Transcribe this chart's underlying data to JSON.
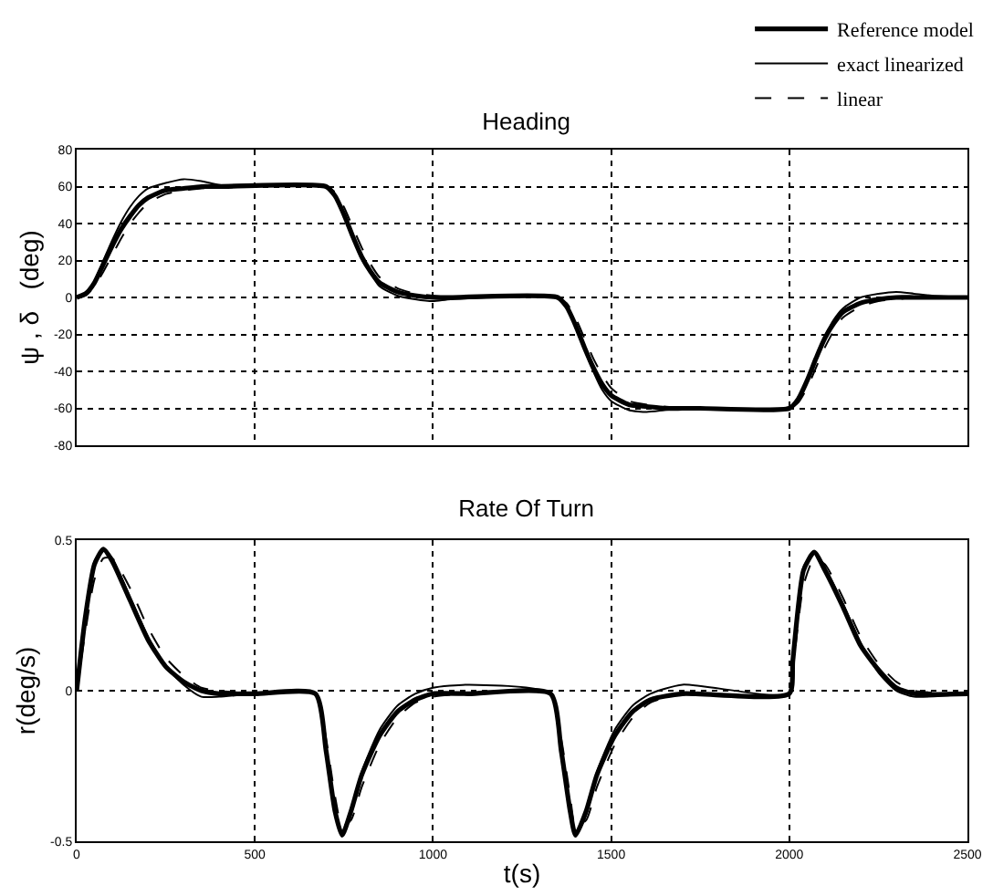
{
  "chart_data": [
    {
      "type": "line",
      "title": "Heading",
      "ylabel": "ψ , δ   (deg)",
      "x": [
        0,
        25,
        50,
        75,
        100,
        125,
        150,
        175,
        200,
        250,
        300,
        350,
        400,
        700,
        725,
        750,
        775,
        800,
        825,
        850,
        900,
        950,
        1000,
        1050,
        1350,
        1375,
        1400,
        1425,
        1450,
        1475,
        1500,
        1550,
        1600,
        1650,
        1700,
        1750,
        2000,
        2025,
        2050,
        2075,
        2100,
        2125,
        2150,
        2200,
        2250,
        2300,
        2350,
        2400,
        2500
      ],
      "xlim": [
        0,
        2500
      ],
      "xticks": [
        0,
        500,
        1000,
        1500,
        2000,
        2500
      ],
      "ylim": [
        -80,
        80
      ],
      "yticks": [
        -80,
        -60,
        -40,
        -20,
        0,
        20,
        40,
        60,
        80
      ],
      "grid": true,
      "legend": "top right",
      "tick_labels": "y",
      "series": [
        {
          "name": "Reference model",
          "color": "#000000",
          "line_style": "solid",
          "values": [
            0,
            2,
            8,
            18,
            28,
            37,
            44,
            50,
            54,
            58,
            59,
            60,
            60,
            60,
            55,
            45,
            33,
            22,
            14,
            8,
            3,
            1,
            0,
            0,
            0,
            -5,
            -15,
            -27,
            -38,
            -47,
            -53,
            -58,
            -59,
            -60,
            -60,
            -60,
            -60,
            -55,
            -45,
            -33,
            -22,
            -14,
            -8,
            -3,
            -1,
            0,
            0,
            0,
            0
          ]
        },
        {
          "name": "exact linearized",
          "color": "#000000",
          "line_style": "solid",
          "values": [
            0,
            2,
            9,
            20,
            31,
            41,
            49,
            55,
            59,
            62,
            64,
            63,
            61,
            60,
            55,
            45,
            32,
            21,
            13,
            6,
            1,
            -1,
            -2,
            -1,
            0,
            -5,
            -15,
            -28,
            -40,
            -50,
            -56,
            -61,
            -62,
            -61,
            -60,
            -60,
            -60,
            -55,
            -45,
            -32,
            -21,
            -12,
            -6,
            0,
            2,
            3,
            2,
            1,
            0
          ]
        },
        {
          "name": "linear",
          "color": "#000000",
          "line_style": "dashed",
          "values": [
            0,
            1,
            6,
            14,
            23,
            32,
            40,
            46,
            51,
            56,
            58,
            59,
            60,
            60,
            57,
            49,
            38,
            27,
            18,
            11,
            5,
            2,
            1,
            0,
            0,
            -3,
            -11,
            -22,
            -33,
            -42,
            -49,
            -56,
            -58,
            -59,
            -60,
            -60,
            -60,
            -57,
            -49,
            -38,
            -27,
            -18,
            -11,
            -5,
            -2,
            -1,
            0,
            0,
            0
          ]
        }
      ]
    },
    {
      "type": "line",
      "title": "Rate Of Turn",
      "xlabel": "t(s)",
      "ylabel": "r(deg/s)",
      "x": [
        0,
        25,
        50,
        75,
        100,
        150,
        200,
        250,
        300,
        350,
        400,
        500,
        670,
        700,
        725,
        745,
        770,
        800,
        850,
        900,
        950,
        1000,
        1100,
        1330,
        1360,
        1385,
        1400,
        1430,
        1460,
        1510,
        1560,
        1610,
        1700,
        2000,
        2010,
        2040,
        2070,
        2100,
        2150,
        2200,
        2250,
        2300,
        2350,
        2500
      ],
      "xlim": [
        0,
        2500
      ],
      "xticks": [
        0,
        500,
        1000,
        1500,
        2000,
        2500
      ],
      "ylim": [
        -0.5,
        0.5
      ],
      "yticks": [
        -0.5,
        0,
        0.5
      ],
      "grid": true,
      "series": [
        {
          "color": "#000000",
          "line_style": "solid",
          "values": [
            0,
            0.25,
            0.42,
            0.47,
            0.43,
            0.3,
            0.17,
            0.08,
            0.03,
            0,
            -0.01,
            -0.01,
            -0.01,
            -0.2,
            -0.4,
            -0.48,
            -0.4,
            -0.28,
            -0.15,
            -0.07,
            -0.03,
            -0.01,
            -0.01,
            -0.01,
            -0.2,
            -0.4,
            -0.48,
            -0.4,
            -0.28,
            -0.15,
            -0.07,
            -0.03,
            -0.01,
            -0.01,
            0.1,
            0.4,
            0.46,
            0.4,
            0.28,
            0.15,
            0.07,
            0.01,
            -0.01,
            -0.01
          ]
        },
        {
          "color": "#000000",
          "line_style": "solid",
          "values": [
            0,
            0.26,
            0.43,
            0.47,
            0.44,
            0.31,
            0.18,
            0.08,
            0.02,
            -0.02,
            -0.02,
            -0.01,
            -0.01,
            -0.2,
            -0.41,
            -0.48,
            -0.41,
            -0.27,
            -0.13,
            -0.05,
            -0.01,
            0.01,
            0.02,
            -0.01,
            -0.2,
            -0.41,
            -0.48,
            -0.41,
            -0.27,
            -0.13,
            -0.05,
            -0.01,
            0.02,
            -0.01,
            0.1,
            0.41,
            0.46,
            0.41,
            0.29,
            0.16,
            0.06,
            0,
            -0.02,
            -0.01
          ]
        },
        {
          "color": "#000000",
          "line_style": "dashed",
          "values": [
            0,
            0.2,
            0.37,
            0.44,
            0.44,
            0.34,
            0.21,
            0.11,
            0.05,
            0.01,
            0,
            -0.01,
            -0.01,
            -0.16,
            -0.35,
            -0.45,
            -0.43,
            -0.32,
            -0.18,
            -0.09,
            -0.04,
            -0.02,
            -0.01,
            -0.01,
            -0.16,
            -0.35,
            -0.45,
            -0.43,
            -0.32,
            -0.18,
            -0.09,
            -0.04,
            -0.01,
            -0.01,
            0.07,
            0.35,
            0.44,
            0.42,
            0.31,
            0.18,
            0.09,
            0.03,
            0,
            -0.01
          ]
        }
      ]
    }
  ]
}
